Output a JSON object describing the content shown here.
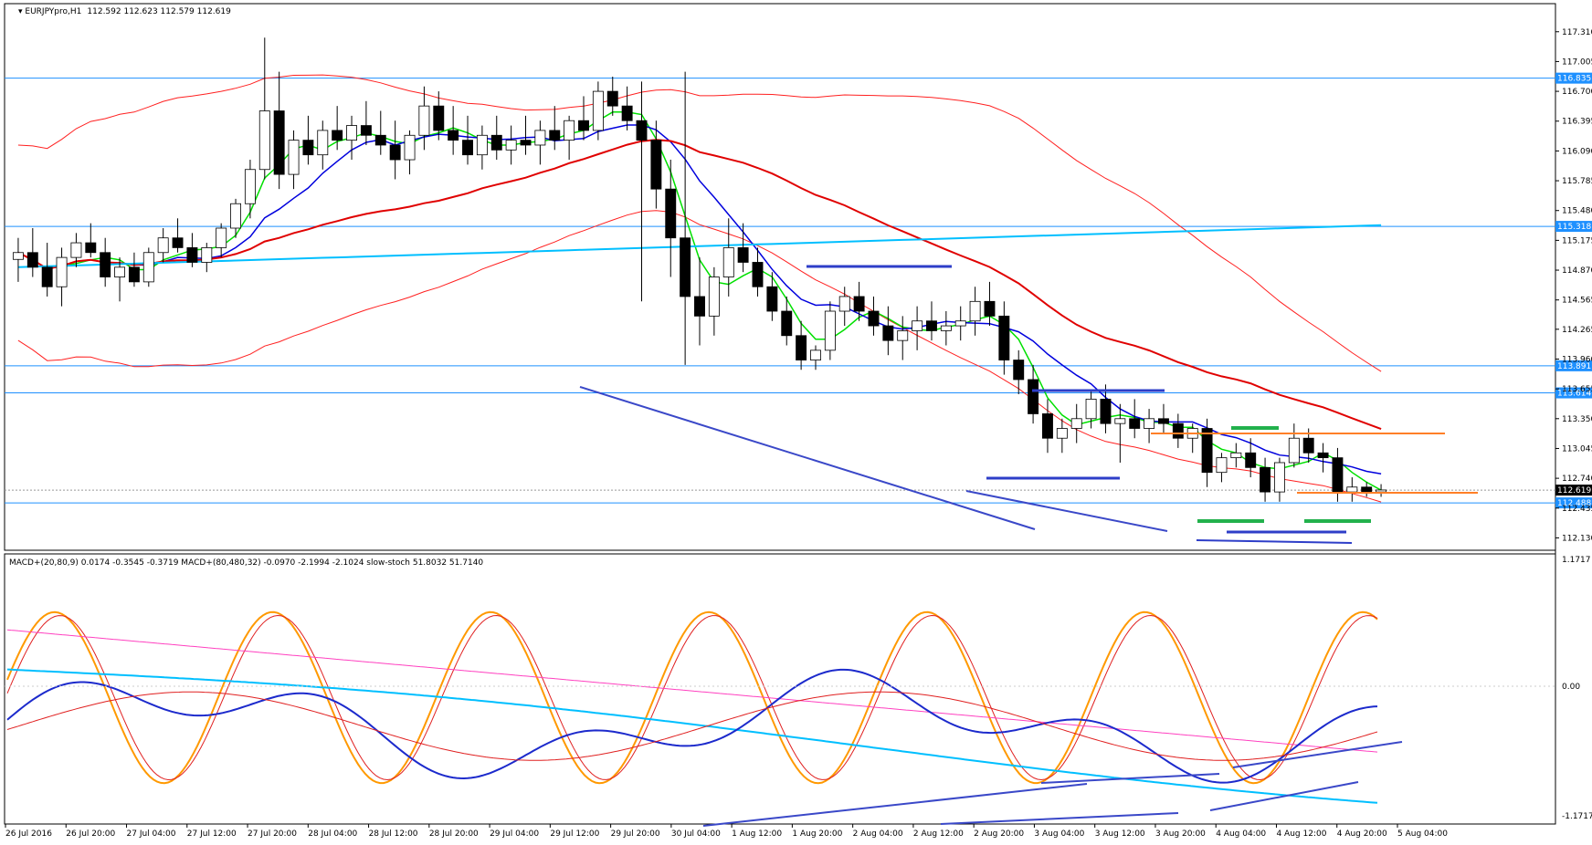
{
  "window": {
    "symbol": "EURJPYpro,H1",
    "ohlc": "112.592 112.623 112.579 112.619",
    "bid_label": "112.619",
    "colors": {
      "bg": "#ffffff",
      "up": "#ffffff",
      "down": "#000000"
    }
  },
  "main_axis": {
    "ticks": [
      "117.310",
      "117.005",
      "116.700",
      "116.395",
      "116.090",
      "115.785",
      "115.480",
      "115.175",
      "114.870",
      "114.565",
      "114.265",
      "113.960",
      "113.655",
      "113.350",
      "113.045",
      "112.740",
      "112.435",
      "112.130"
    ],
    "ymin": 112.05,
    "ymax": 117.56
  },
  "hlines": [
    {
      "price": 116.835,
      "label": "116.835",
      "color": "#1e90ff"
    },
    {
      "price": 115.318,
      "label": "115.318",
      "color": "#1e90ff"
    },
    {
      "price": 113.891,
      "label": "113.891",
      "color": "#1e90ff"
    },
    {
      "price": 113.614,
      "label": "113.614",
      "color": "#1e90ff"
    },
    {
      "price": 112.488,
      "label": "112.488",
      "color": "#1e90ff"
    }
  ],
  "x_axis_labels": [
    "26 Jul 2016",
    "26 Jul 20:00",
    "27 Jul 04:00",
    "27 Jul 12:00",
    "27 Jul 20:00",
    "28 Jul 04:00",
    "28 Jul 12:00",
    "28 Jul 20:00",
    "29 Jul 04:00",
    "29 Jul 12:00",
    "29 Jul 20:00",
    "30 Jul 04:00",
    "1 Aug 12:00",
    "1 Aug 20:00",
    "2 Aug 04:00",
    "2 Aug 12:00",
    "2 Aug 20:00",
    "3 Aug 04:00",
    "3 Aug 12:00",
    "3 Aug 20:00",
    "4 Aug 04:00",
    "4 Aug 12:00",
    "4 Aug 20:00",
    "5 Aug 04:00"
  ],
  "sub_header": "MACD+(20,80,9) 0.0174 -0.3545 -0.3719  MACD+(80,480,32) -0.0970 -2.1994 -2.1024  slow-stoch 51.8032 51.7140",
  "sub_axis": {
    "top": "1.1717",
    "mid": "0.00",
    "bottom": "-1.1717"
  },
  "chart_data": {
    "type": "candlestick",
    "symbol": "EURJPYpro",
    "timeframe": "H1",
    "candles": [
      [
        114.98,
        115.2,
        114.75,
        115.05
      ],
      [
        115.05,
        115.3,
        114.8,
        114.9
      ],
      [
        114.9,
        115.15,
        114.6,
        114.7
      ],
      [
        114.7,
        115.1,
        114.5,
        115.0
      ],
      [
        115.0,
        115.25,
        114.9,
        115.15
      ],
      [
        115.15,
        115.35,
        115.0,
        115.05
      ],
      [
        115.05,
        115.2,
        114.7,
        114.8
      ],
      [
        114.8,
        115.0,
        114.55,
        114.9
      ],
      [
        114.9,
        115.05,
        114.7,
        114.75
      ],
      [
        114.75,
        115.1,
        114.7,
        115.05
      ],
      [
        115.05,
        115.3,
        114.95,
        115.2
      ],
      [
        115.2,
        115.4,
        115.05,
        115.1
      ],
      [
        115.1,
        115.25,
        114.9,
        114.95
      ],
      [
        114.95,
        115.15,
        114.85,
        115.1
      ],
      [
        115.1,
        115.35,
        115.0,
        115.3
      ],
      [
        115.3,
        115.6,
        115.2,
        115.55
      ],
      [
        115.55,
        116.0,
        115.4,
        115.9
      ],
      [
        115.9,
        117.25,
        115.8,
        116.5
      ],
      [
        116.5,
        116.9,
        115.7,
        115.85
      ],
      [
        115.85,
        116.3,
        115.7,
        116.2
      ],
      [
        116.2,
        116.45,
        115.95,
        116.05
      ],
      [
        116.05,
        116.4,
        115.9,
        116.3
      ],
      [
        116.3,
        116.55,
        116.1,
        116.2
      ],
      [
        116.2,
        116.45,
        116.0,
        116.35
      ],
      [
        116.35,
        116.6,
        116.15,
        116.25
      ],
      [
        116.25,
        116.5,
        116.05,
        116.15
      ],
      [
        116.15,
        116.4,
        115.8,
        116.0
      ],
      [
        116.0,
        116.3,
        115.85,
        116.25
      ],
      [
        116.25,
        116.75,
        116.1,
        116.55
      ],
      [
        116.55,
        116.7,
        116.2,
        116.3
      ],
      [
        116.3,
        116.55,
        116.05,
        116.2
      ],
      [
        116.2,
        116.45,
        115.95,
        116.05
      ],
      [
        116.05,
        116.35,
        115.9,
        116.25
      ],
      [
        116.25,
        116.45,
        116.0,
        116.1
      ],
      [
        116.1,
        116.35,
        115.95,
        116.2
      ],
      [
        116.2,
        116.45,
        116.05,
        116.15
      ],
      [
        116.15,
        116.4,
        115.95,
        116.3
      ],
      [
        116.3,
        116.55,
        116.1,
        116.2
      ],
      [
        116.2,
        116.45,
        116.0,
        116.4
      ],
      [
        116.4,
        116.65,
        116.2,
        116.3
      ],
      [
        116.3,
        116.8,
        116.2,
        116.7
      ],
      [
        116.7,
        116.85,
        116.45,
        116.55
      ],
      [
        116.55,
        116.75,
        116.3,
        116.4
      ],
      [
        116.4,
        116.8,
        114.55,
        116.2
      ],
      [
        116.2,
        116.4,
        115.5,
        115.7
      ],
      [
        115.7,
        116.0,
        114.8,
        115.2
      ],
      [
        115.2,
        116.9,
        113.9,
        114.6
      ],
      [
        114.6,
        115.0,
        114.1,
        114.4
      ],
      [
        114.4,
        114.9,
        114.2,
        114.8
      ],
      [
        114.8,
        115.4,
        114.6,
        115.1
      ],
      [
        115.1,
        115.35,
        114.85,
        114.95
      ],
      [
        114.95,
        115.1,
        114.6,
        114.7
      ],
      [
        114.7,
        114.85,
        114.35,
        114.45
      ],
      [
        114.45,
        114.6,
        114.1,
        114.2
      ],
      [
        114.2,
        114.35,
        113.85,
        113.95
      ],
      [
        113.95,
        114.1,
        113.85,
        114.05
      ],
      [
        114.05,
        114.55,
        113.95,
        114.45
      ],
      [
        114.45,
        114.7,
        114.3,
        114.6
      ],
      [
        114.6,
        114.75,
        114.35,
        114.45
      ],
      [
        114.45,
        114.6,
        114.2,
        114.3
      ],
      [
        114.3,
        114.5,
        114.0,
        114.15
      ],
      [
        114.15,
        114.4,
        113.95,
        114.25
      ],
      [
        114.25,
        114.5,
        114.05,
        114.35
      ],
      [
        114.35,
        114.55,
        114.15,
        114.25
      ],
      [
        114.25,
        114.45,
        114.1,
        114.3
      ],
      [
        114.3,
        114.5,
        114.15,
        114.35
      ],
      [
        114.35,
        114.7,
        114.2,
        114.55
      ],
      [
        114.55,
        114.75,
        114.3,
        114.4
      ],
      [
        114.4,
        114.55,
        113.8,
        113.95
      ],
      [
        113.95,
        114.05,
        113.6,
        113.75
      ],
      [
        113.75,
        113.9,
        113.3,
        113.4
      ],
      [
        113.4,
        113.55,
        113.0,
        113.15
      ],
      [
        113.15,
        113.35,
        113.0,
        113.25
      ],
      [
        113.25,
        113.5,
        113.1,
        113.35
      ],
      [
        113.35,
        113.65,
        113.25,
        113.55
      ],
      [
        113.55,
        113.7,
        113.2,
        113.3
      ],
      [
        113.3,
        113.5,
        112.9,
        113.35
      ],
      [
        113.35,
        113.55,
        113.15,
        113.25
      ],
      [
        113.25,
        113.45,
        113.1,
        113.35
      ],
      [
        113.35,
        113.5,
        113.2,
        113.3
      ],
      [
        113.3,
        113.4,
        113.05,
        113.15
      ],
      [
        113.15,
        113.3,
        113.0,
        113.25
      ],
      [
        113.25,
        113.35,
        112.65,
        112.8
      ],
      [
        112.8,
        113.0,
        112.7,
        112.95
      ],
      [
        112.95,
        113.1,
        112.85,
        113.0
      ],
      [
        113.0,
        113.15,
        112.75,
        112.85
      ],
      [
        112.85,
        112.95,
        112.5,
        112.6
      ],
      [
        112.6,
        112.95,
        112.5,
        112.9
      ],
      [
        112.9,
        113.3,
        112.85,
        113.15
      ],
      [
        113.15,
        113.25,
        112.9,
        113.0
      ],
      [
        113.0,
        113.1,
        112.8,
        112.95
      ],
      [
        112.95,
        113.05,
        112.5,
        112.6
      ],
      [
        112.6,
        112.75,
        112.5,
        112.65
      ],
      [
        112.65,
        112.7,
        112.55,
        112.6
      ],
      [
        112.6,
        112.68,
        112.55,
        112.62
      ]
    ],
    "moving_averages": [
      {
        "color": "#00e000",
        "name": "MA fast"
      },
      {
        "color": "#0000dd",
        "name": "MA mid"
      },
      {
        "color": "#e00000",
        "name": "MA slow"
      },
      {
        "color": "#00bfff",
        "name": "MA long"
      }
    ],
    "envelope_color": "#ff2020",
    "indicators": [
      "MACD+(20,80,9)",
      "MACD+(80,480,32)",
      "slow-stoch"
    ]
  }
}
